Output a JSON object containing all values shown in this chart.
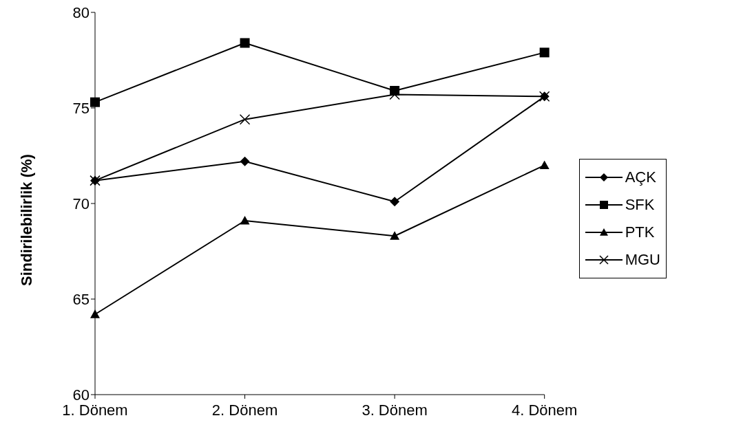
{
  "chart_data": {
    "type": "line",
    "ylabel": "Sindirilebilirlik (%)",
    "categories": [
      "1. Dönem",
      "2. Dönem",
      "3. Dönem",
      "4. Dönem"
    ],
    "series": [
      {
        "name": "AÇK",
        "color": "#000000",
        "marker": "diamond",
        "values": [
          71.2,
          72.2,
          70.1,
          75.6
        ]
      },
      {
        "name": "SFK",
        "color": "#000000",
        "marker": "square",
        "values": [
          75.3,
          78.4,
          75.9,
          77.9
        ]
      },
      {
        "name": "PTK",
        "color": "#000000",
        "marker": "triangle",
        "values": [
          64.2,
          69.1,
          68.3,
          72.0
        ]
      },
      {
        "name": "MGU",
        "color": "#000000",
        "marker": "cross",
        "values": [
          71.2,
          74.4,
          75.7,
          75.6
        ]
      }
    ],
    "ylim": [
      60,
      80
    ],
    "yticks": [
      60,
      65,
      70,
      75,
      80
    ],
    "grid": false,
    "legend": "right",
    "line_style": "solid"
  }
}
